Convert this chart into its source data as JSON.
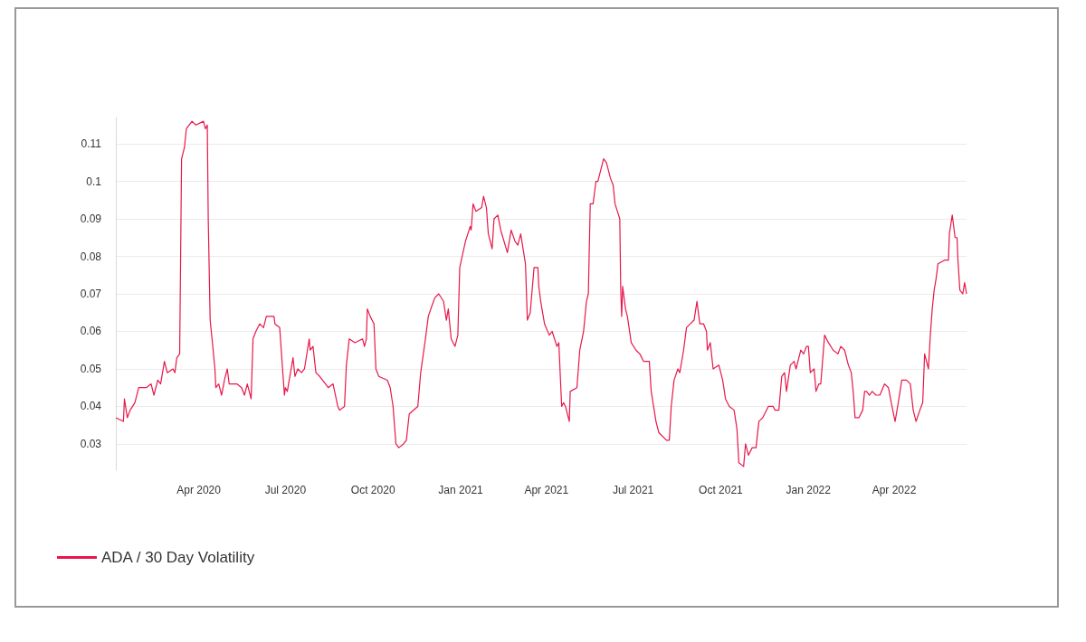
{
  "chart_data": {
    "type": "line",
    "x": [
      "2020-01-05",
      "2020-01-13",
      "2020-01-14",
      "2020-01-17",
      "2020-01-20",
      "2020-01-25",
      "2020-01-29",
      "2020-02-06",
      "2020-02-11",
      "2020-02-14",
      "2020-02-18",
      "2020-02-21",
      "2020-02-25",
      "2020-02-28",
      "2020-03-05",
      "2020-03-07",
      "2020-03-09",
      "2020-03-12",
      "2020-03-14",
      "2020-03-17",
      "2020-03-19",
      "2020-03-25",
      "2020-03-29",
      "2020-04-06",
      "2020-04-08",
      "2020-04-10",
      "2020-04-11",
      "2020-04-13",
      "2020-04-15",
      "2020-04-18",
      "2020-04-19",
      "2020-04-22",
      "2020-04-25",
      "2020-04-28",
      "2020-05-01",
      "2020-05-03",
      "2020-05-11",
      "2020-05-16",
      "2020-05-19",
      "2020-05-22",
      "2020-05-26",
      "2020-05-28",
      "2020-05-31",
      "2020-06-04",
      "2020-06-08",
      "2020-06-11",
      "2020-06-19",
      "2020-06-20",
      "2020-06-25",
      "2020-06-28",
      "2020-06-30",
      "2020-07-01",
      "2020-07-03",
      "2020-07-09",
      "2020-07-11",
      "2020-07-14",
      "2020-07-18",
      "2020-07-21",
      "2020-07-26",
      "2020-07-27",
      "2020-07-30",
      "2020-08-02",
      "2020-08-06",
      "2020-08-09",
      "2020-08-15",
      "2020-08-20",
      "2020-08-25",
      "2020-08-27",
      "2020-09-01",
      "2020-09-03",
      "2020-09-06",
      "2020-09-12",
      "2020-09-20",
      "2020-09-22",
      "2020-09-24",
      "2020-09-25",
      "2020-09-28",
      "2020-10-02",
      "2020-10-04",
      "2020-10-07",
      "2020-10-16",
      "2020-10-19",
      "2020-10-22",
      "2020-10-25",
      "2020-10-28",
      "2020-11-02",
      "2020-11-05",
      "2020-11-08",
      "2020-11-17",
      "2020-11-20",
      "2020-11-25",
      "2020-11-28",
      "2020-12-02",
      "2020-12-05",
      "2020-12-09",
      "2020-12-14",
      "2020-12-17",
      "2020-12-19",
      "2020-12-22",
      "2020-12-26",
      "2020-12-29",
      "2020-12-31",
      "2021-01-06",
      "2021-01-11",
      "2021-01-12",
      "2021-01-14",
      "2021-01-17",
      "2021-01-23",
      "2021-01-25",
      "2021-01-28",
      "2021-01-30",
      "2021-02-03",
      "2021-02-05",
      "2021-02-09",
      "2021-02-12",
      "2021-02-19",
      "2021-02-23",
      "2021-02-27",
      "2021-03-02",
      "2021-03-05",
      "2021-03-10",
      "2021-03-12",
      "2021-03-15",
      "2021-03-19",
      "2021-03-23",
      "2021-03-24",
      "2021-03-26",
      "2021-03-30",
      "2021-04-04",
      "2021-04-07",
      "2021-04-12",
      "2021-04-14",
      "2021-04-17",
      "2021-04-19",
      "2021-04-21",
      "2021-04-25",
      "2021-04-26",
      "2021-05-03",
      "2021-05-06",
      "2021-05-10",
      "2021-05-13",
      "2021-05-15",
      "2021-05-17",
      "2021-05-20",
      "2021-05-23",
      "2021-05-25",
      "2021-05-31",
      "2021-06-03",
      "2021-06-07",
      "2021-06-10",
      "2021-06-12",
      "2021-06-17",
      "2021-06-18",
      "2021-06-19",
      "2021-06-20",
      "2021-06-23",
      "2021-06-25",
      "2021-06-29",
      "2021-07-04",
      "2021-07-08",
      "2021-07-12",
      "2021-07-18",
      "2021-07-20",
      "2021-07-25",
      "2021-07-28",
      "2021-08-05",
      "2021-08-08",
      "2021-08-10",
      "2021-08-13",
      "2021-08-17",
      "2021-08-19",
      "2021-08-23",
      "2021-08-26",
      "2021-08-30",
      "2021-09-03",
      "2021-09-06",
      "2021-09-09",
      "2021-09-13",
      "2021-09-16",
      "2021-09-17",
      "2021-09-20",
      "2021-09-23",
      "2021-09-29",
      "2021-10-03",
      "2021-10-06",
      "2021-10-10",
      "2021-10-15",
      "2021-10-18",
      "2021-10-20",
      "2021-10-25",
      "2021-10-27",
      "2021-10-30",
      "2021-11-03",
      "2021-11-07",
      "2021-11-10",
      "2021-11-14",
      "2021-11-20",
      "2021-11-25",
      "2021-11-27",
      "2021-12-01",
      "2021-12-04",
      "2021-12-07",
      "2021-12-09",
      "2021-12-13",
      "2021-12-17",
      "2021-12-19",
      "2021-12-22",
      "2021-12-24",
      "2021-12-27",
      "2021-12-30",
      "2022-01-01",
      "2022-01-03",
      "2022-01-07",
      "2022-01-09",
      "2022-01-12",
      "2022-01-14",
      "2022-01-18",
      "2022-01-22",
      "2022-01-27",
      "2022-02-01",
      "2022-02-04",
      "2022-02-08",
      "2022-02-12",
      "2022-02-15",
      "2022-02-17",
      "2022-02-19",
      "2022-02-23",
      "2022-02-27",
      "2022-03-01",
      "2022-03-03",
      "2022-03-06",
      "2022-03-09",
      "2022-03-13",
      "2022-03-17",
      "2022-03-22",
      "2022-03-26",
      "2022-03-29",
      "2022-04-02",
      "2022-04-06",
      "2022-04-09",
      "2022-04-14",
      "2022-04-18",
      "2022-04-21",
      "2022-04-24",
      "2022-04-28",
      "2022-05-01",
      "2022-05-03",
      "2022-05-07",
      "2022-05-09",
      "2022-05-11",
      "2022-05-13",
      "2022-05-15",
      "2022-05-17",
      "2022-05-24",
      "2022-05-28",
      "2022-05-29",
      "2022-06-01",
      "2022-06-04",
      "2022-06-06",
      "2022-06-07",
      "2022-06-09",
      "2022-06-12",
      "2022-06-14",
      "2022-06-16"
    ],
    "series": [
      {
        "name": "ADA / 30 Day Volatility",
        "color": "#e8174a",
        "values": [
          0.037,
          0.036,
          0.042,
          0.037,
          0.039,
          0.041,
          0.045,
          0.045,
          0.046,
          0.043,
          0.047,
          0.046,
          0.052,
          0.049,
          0.05,
          0.049,
          0.053,
          0.054,
          0.106,
          0.109,
          0.114,
          0.116,
          0.115,
          0.116,
          0.114,
          0.115,
          0.09,
          0.063,
          0.058,
          0.05,
          0.045,
          0.046,
          0.043,
          0.047,
          0.05,
          0.046,
          0.046,
          0.045,
          0.043,
          0.046,
          0.042,
          0.058,
          0.06,
          0.062,
          0.061,
          0.064,
          0.064,
          0.062,
          0.061,
          0.05,
          0.043,
          0.045,
          0.044,
          0.053,
          0.048,
          0.05,
          0.049,
          0.05,
          0.058,
          0.055,
          0.056,
          0.049,
          0.048,
          0.047,
          0.045,
          0.046,
          0.04,
          0.039,
          0.04,
          0.051,
          0.058,
          0.057,
          0.058,
          0.056,
          0.058,
          0.066,
          0.064,
          0.062,
          0.05,
          0.048,
          0.047,
          0.045,
          0.04,
          0.03,
          0.029,
          0.03,
          0.031,
          0.038,
          0.04,
          0.049,
          0.058,
          0.064,
          0.067,
          0.069,
          0.07,
          0.068,
          0.063,
          0.066,
          0.058,
          0.056,
          0.059,
          0.077,
          0.084,
          0.088,
          0.087,
          0.094,
          0.092,
          0.093,
          0.096,
          0.093,
          0.086,
          0.082,
          0.09,
          0.091,
          0.087,
          0.081,
          0.087,
          0.084,
          0.083,
          0.086,
          0.078,
          0.063,
          0.065,
          0.077,
          0.077,
          0.072,
          0.068,
          0.062,
          0.059,
          0.06,
          0.056,
          0.057,
          0.04,
          0.041,
          0.04,
          0.036,
          0.044,
          0.045,
          0.055,
          0.06,
          0.068,
          0.07,
          0.094,
          0.094,
          0.1,
          0.1,
          0.106,
          0.105,
          0.101,
          0.099,
          0.094,
          0.09,
          0.071,
          0.064,
          0.072,
          0.066,
          0.064,
          0.057,
          0.055,
          0.054,
          0.052,
          0.052,
          0.044,
          0.036,
          0.033,
          0.031,
          0.031,
          0.04,
          0.047,
          0.05,
          0.049,
          0.055,
          0.061,
          0.062,
          0.063,
          0.068,
          0.062,
          0.062,
          0.06,
          0.055,
          0.057,
          0.05,
          0.051,
          0.047,
          0.042,
          0.04,
          0.039,
          0.034,
          0.025,
          0.024,
          0.03,
          0.027,
          0.029,
          0.029,
          0.036,
          0.037,
          0.04,
          0.04,
          0.039,
          0.039,
          0.048,
          0.049,
          0.044,
          0.051,
          0.052,
          0.05,
          0.053,
          0.055,
          0.054,
          0.056,
          0.056,
          0.049,
          0.05,
          0.044,
          0.046,
          0.046,
          0.059,
          0.057,
          0.055,
          0.054,
          0.056,
          0.055,
          0.051,
          0.049,
          0.044,
          0.037,
          0.037,
          0.039,
          0.044,
          0.044,
          0.043,
          0.044,
          0.043,
          0.043,
          0.046,
          0.045,
          0.041,
          0.036,
          0.042,
          0.047,
          0.047,
          0.046,
          0.039,
          0.036,
          0.039,
          0.041,
          0.054,
          0.05,
          0.059,
          0.066,
          0.071,
          0.074,
          0.078,
          0.079,
          0.079,
          0.086,
          0.091,
          0.085,
          0.085,
          0.079,
          0.071,
          0.07,
          0.073,
          0.07
        ]
      }
    ],
    "xlim": [
      "2020-01-05",
      "2022-06-16"
    ],
    "xticks": [
      {
        "value": "2020-04-01",
        "label": "Apr 2020"
      },
      {
        "value": "2020-07-01",
        "label": "Jul 2020"
      },
      {
        "value": "2020-10-01",
        "label": "Oct 2020"
      },
      {
        "value": "2021-01-01",
        "label": "Jan 2021"
      },
      {
        "value": "2021-04-01",
        "label": "Apr 2021"
      },
      {
        "value": "2021-07-01",
        "label": "Jul 2021"
      },
      {
        "value": "2021-10-01",
        "label": "Oct 2021"
      },
      {
        "value": "2022-01-01",
        "label": "Jan 2022"
      },
      {
        "value": "2022-04-01",
        "label": "Apr 2022"
      }
    ],
    "ylim": [
      0.023,
      0.117
    ],
    "yticks": [
      0.03,
      0.04,
      0.05,
      0.06,
      0.07,
      0.08,
      0.09,
      0.1,
      0.11
    ],
    "grid": "y",
    "legend": "bottom left",
    "marker": "none",
    "line_style": "solid"
  }
}
